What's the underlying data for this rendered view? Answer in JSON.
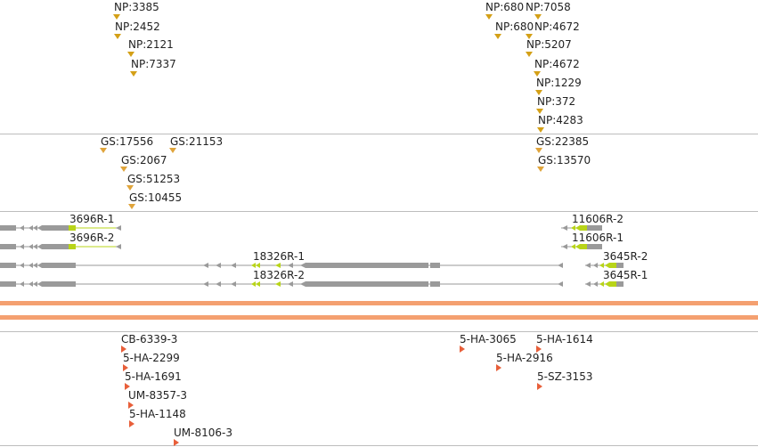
{
  "colors": {
    "np_marker": "#d4a017",
    "gs_marker": "#e0a43a",
    "feature_marker": "#e85f3a",
    "gene_gray": "#9a9a9a",
    "gene_lime": "#b8d418",
    "band": "#f4a070"
  },
  "np_track": {
    "labels": [
      "NP:3385",
      "NP:2452",
      "NP:2121",
      "NP:7337",
      "NP:680",
      "NP:7058",
      "NP:680",
      "NP:4672",
      "NP:5207",
      "NP:4672",
      "NP:1229",
      "NP:372",
      "NP:4283"
    ]
  },
  "gs_track": {
    "labels": [
      "GS:17556",
      "GS:21153",
      "GS:2067",
      "GS:51253",
      "GS:10455",
      "GS:22385",
      "GS:13570"
    ]
  },
  "gene_track": {
    "labels": [
      "3696R-1",
      "3696R-2",
      "18326R-1",
      "18326R-2",
      "11606R-2",
      "11606R-1",
      "3645R-2",
      "3645R-1"
    ]
  },
  "feature_track": {
    "labels": [
      "CB-6339-3",
      "5-HA-2299",
      "5-HA-1691",
      "UM-8357-3",
      "5-HA-1148",
      "UM-8106-3",
      "5-HA-3065",
      "5-HA-1614",
      "5-HA-2916",
      "5-SZ-3153"
    ]
  }
}
